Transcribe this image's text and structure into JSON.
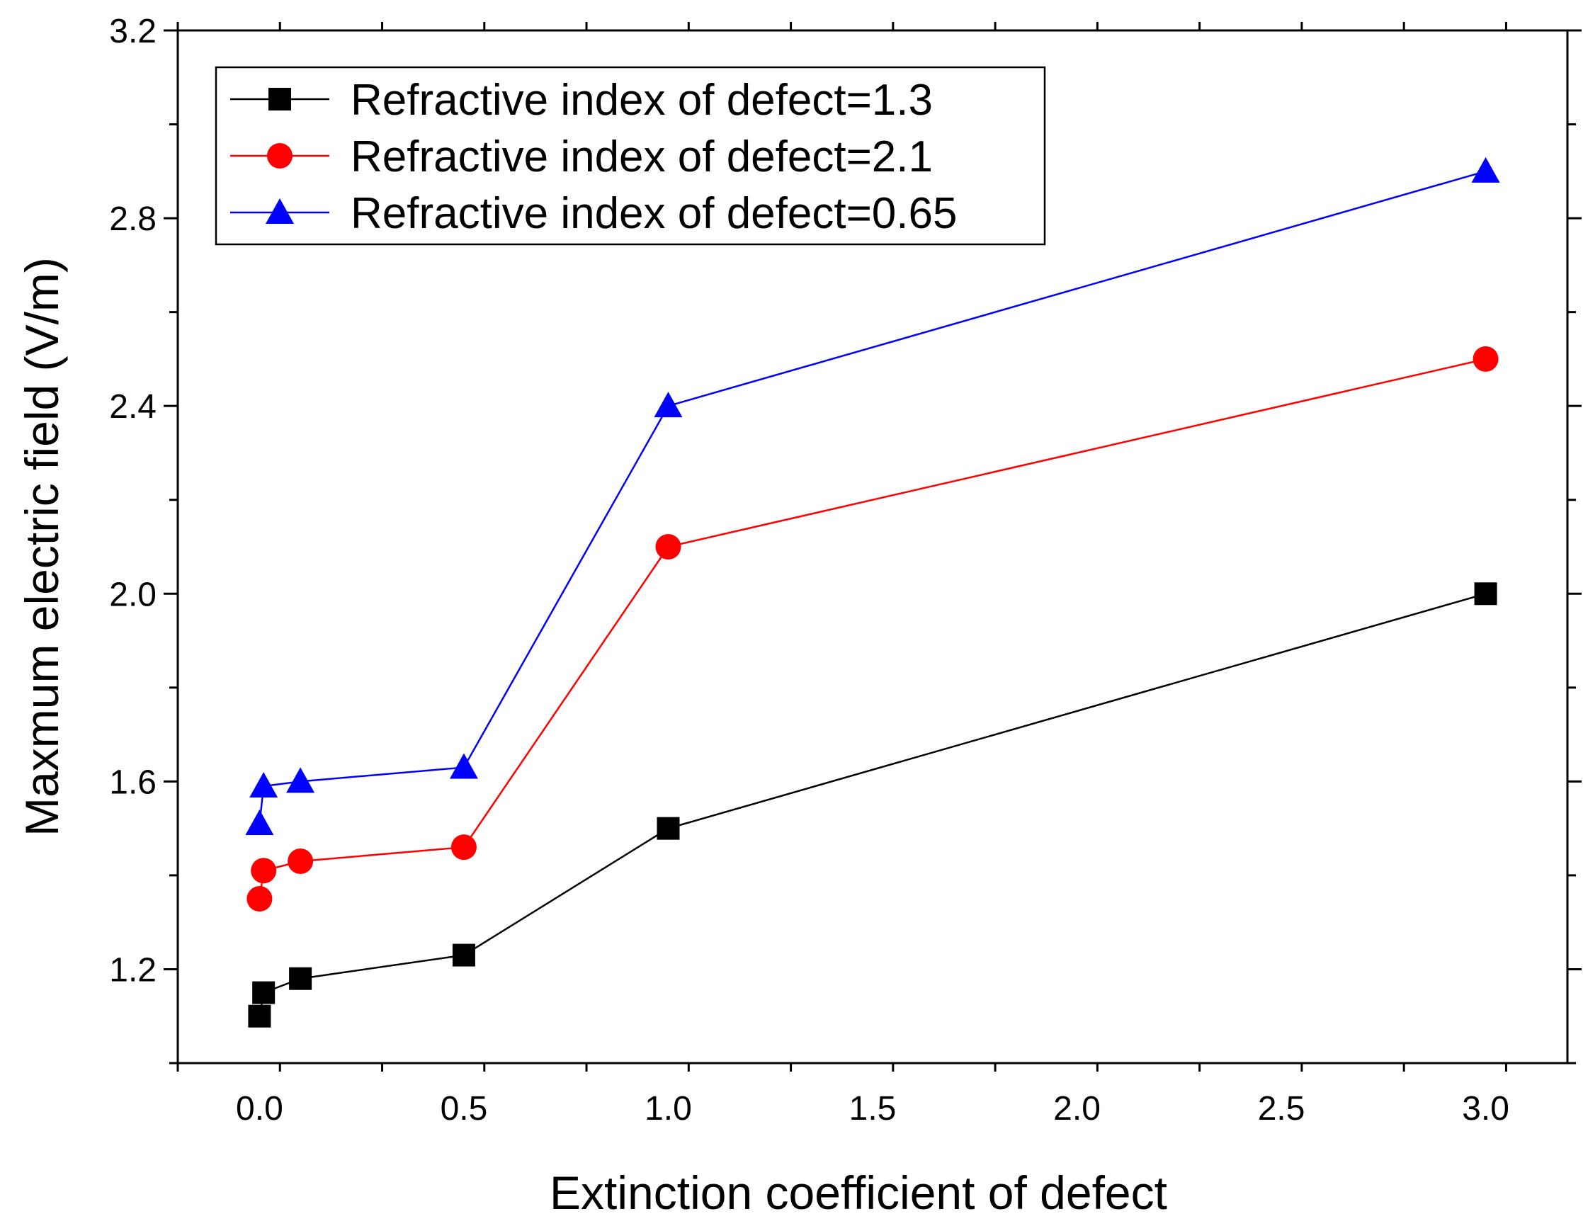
{
  "chart_data": {
    "type": "line",
    "title": "",
    "xlabel": "Extinction coefficient  of  defect",
    "ylabel": "Maxmum electric field (V/m)",
    "xlim": [
      -0.2,
      3.2
    ],
    "ylim": [
      1.0,
      3.2
    ],
    "x_ticks": [
      0.0,
      0.5,
      1.0,
      1.5,
      2.0,
      2.5,
      3.0
    ],
    "x_tick_labels": [
      "0.0",
      "0.5",
      "1.0",
      "1.5",
      "2.0",
      "2.5",
      "3.0"
    ],
    "y_ticks": [
      1.2,
      1.6,
      2.0,
      2.4,
      2.8,
      3.2
    ],
    "y_tick_labels": [
      "1.2",
      "1.6",
      "2.0",
      "2.4",
      "2.8",
      "3.2"
    ],
    "legend_position": "top-left",
    "series": [
      {
        "name": "Refractive index of  defect=1.3",
        "color": "#000000",
        "marker": "square",
        "x": [
          0.0,
          0.01,
          0.1,
          0.5,
          1.0,
          3.0
        ],
        "y": [
          1.1,
          1.15,
          1.18,
          1.23,
          1.5,
          2.0
        ]
      },
      {
        "name": "Refractive index of  defect=2.1",
        "color": "#ff0000",
        "marker": "circle",
        "x": [
          0.0,
          0.01,
          0.1,
          0.5,
          1.0,
          3.0
        ],
        "y": [
          1.35,
          1.41,
          1.43,
          1.46,
          2.1,
          2.5
        ]
      },
      {
        "name": "Refractive index of  defect=0.65",
        "color": "#0000ff",
        "marker": "triangle",
        "x": [
          0.0,
          0.01,
          0.1,
          0.5,
          1.0,
          3.0
        ],
        "y": [
          1.51,
          1.59,
          1.6,
          1.63,
          2.4,
          2.9
        ]
      }
    ]
  }
}
